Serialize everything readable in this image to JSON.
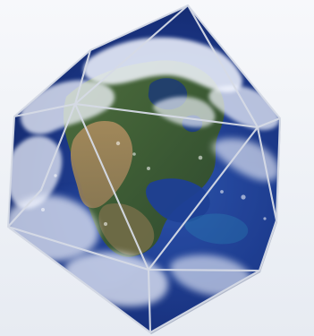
{
  "image": {
    "subject": "earth-icosahedron"
  },
  "palette": {
    "ocean_deep": "#142a6b",
    "ocean_mid": "#26479a",
    "ocean_light": "#4a73c9",
    "land_green": "#4c6c3a",
    "land_dark_green": "#2f4a2d",
    "land_tan": "#9a8258",
    "desert": "#b59a6a",
    "cloud": "#f4f7ff",
    "edge": "#d6dbe6",
    "caribbean": "#2a9bc0"
  }
}
